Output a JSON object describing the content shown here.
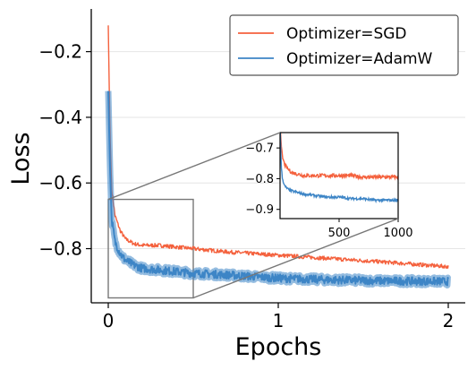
{
  "chart_data": {
    "type": "line",
    "xlabel": "Epochs",
    "ylabel": "Loss",
    "xlim": [
      -0.1,
      2.1
    ],
    "ylim": [
      -0.965,
      -0.07
    ],
    "xticks": [
      0,
      1,
      2
    ],
    "yticks": [
      -0.2,
      -0.4,
      -0.6,
      -0.8
    ],
    "grid": "horizontal",
    "legend_position": "top-right",
    "series": [
      {
        "name": "Optimizer=SGD",
        "color": "#f4613d",
        "x": [
          0.0,
          0.01,
          0.02,
          0.04,
          0.07,
          0.1,
          0.15,
          0.2,
          0.3,
          0.4,
          0.5,
          0.7,
          1.0,
          1.3,
          1.6,
          2.0
        ],
        "values": [
          -0.12,
          -0.45,
          -0.62,
          -0.7,
          -0.745,
          -0.77,
          -0.785,
          -0.79,
          -0.79,
          -0.795,
          -0.8,
          -0.81,
          -0.82,
          -0.83,
          -0.84,
          -0.855
        ]
      },
      {
        "name": "Optimizer=AdamW",
        "color": "#3d85c6",
        "x": [
          0.0,
          0.01,
          0.02,
          0.04,
          0.07,
          0.1,
          0.15,
          0.2,
          0.3,
          0.4,
          0.5,
          0.7,
          1.0,
          1.3,
          1.6,
          2.0
        ],
        "values": [
          -0.32,
          -0.55,
          -0.71,
          -0.78,
          -0.815,
          -0.835,
          -0.85,
          -0.86,
          -0.865,
          -0.87,
          -0.875,
          -0.88,
          -0.89,
          -0.895,
          -0.898,
          -0.9
        ]
      }
    ],
    "inset": {
      "xlim": [
        0,
        1000
      ],
      "ylim": [
        -0.93,
        -0.65
      ],
      "xticks": [
        500,
        1000
      ],
      "yticks": [
        -0.7,
        -0.8,
        -0.9
      ],
      "zoom_region": {
        "x": [
          0,
          0.5
        ],
        "y": [
          -0.95,
          -0.65
        ]
      },
      "series": [
        {
          "name": "Optimizer=SGD",
          "x": [
            0,
            10,
            20,
            40,
            70,
            100,
            150,
            200,
            300,
            400,
            500,
            600,
            700,
            800,
            900,
            1000
          ],
          "values": [
            -0.62,
            -0.69,
            -0.73,
            -0.755,
            -0.77,
            -0.78,
            -0.785,
            -0.79,
            -0.79,
            -0.79,
            -0.79,
            -0.79,
            -0.795,
            -0.795,
            -0.795,
            -0.795
          ]
        },
        {
          "name": "Optimizer=AdamW",
          "x": [
            0,
            10,
            20,
            40,
            70,
            100,
            150,
            200,
            300,
            400,
            500,
            600,
            700,
            800,
            900,
            1000
          ],
          "values": [
            -0.62,
            -0.76,
            -0.8,
            -0.825,
            -0.835,
            -0.84,
            -0.845,
            -0.85,
            -0.855,
            -0.86,
            -0.86,
            -0.865,
            -0.865,
            -0.87,
            -0.87,
            -0.87
          ]
        }
      ]
    }
  }
}
